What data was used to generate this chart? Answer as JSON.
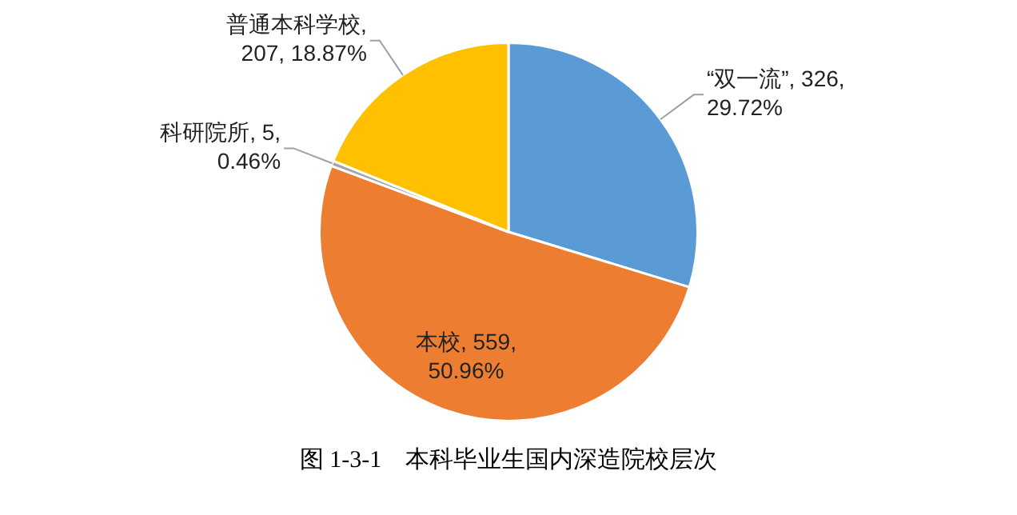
{
  "chart_data": {
    "type": "pie",
    "title": "图 1-3-1    本科毕业生国内深造院校层次",
    "categories": [
      "“双一流”",
      "本校",
      "科研院所",
      "普通本科学校"
    ],
    "values": [
      326,
      559,
      5,
      207
    ],
    "colors": [
      "#5b9bd5",
      "#ed7d31",
      "#a5a5a5",
      "#ffc000"
    ],
    "value_labels": [
      ", 326,\n29.72%",
      ", 559,\n50.96%",
      ", 5,\n0.46%",
      ",\n207, 18.87%"
    ]
  }
}
